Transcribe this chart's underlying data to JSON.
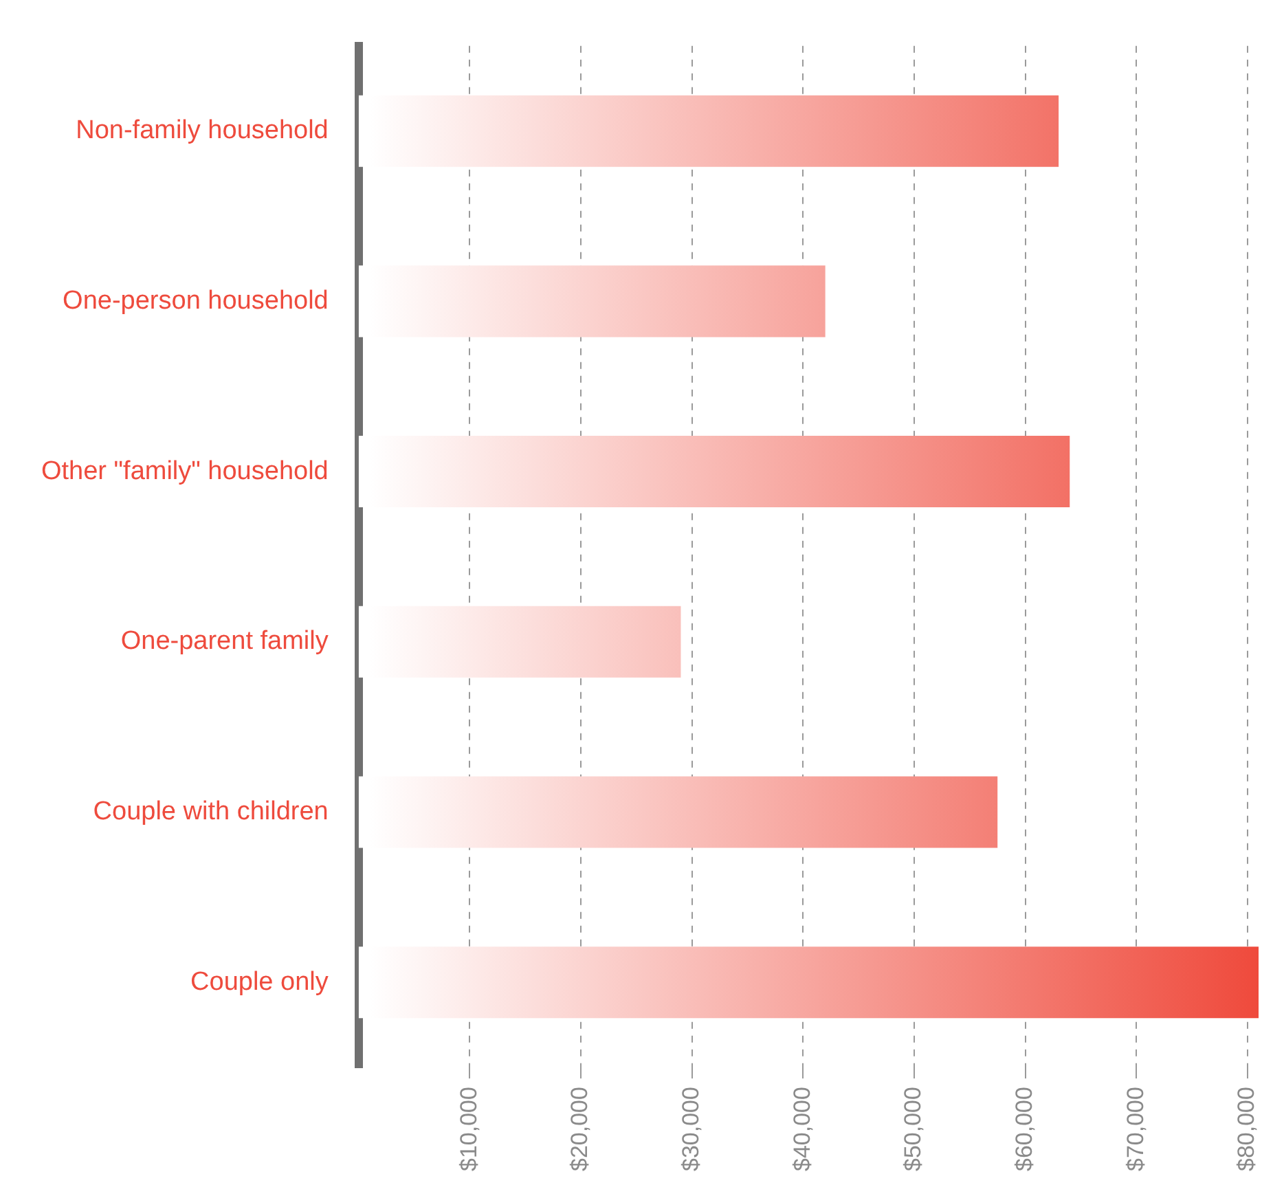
{
  "chart_data": {
    "type": "bar",
    "orientation": "horizontal",
    "categories": [
      "Non-family household",
      "One-person household",
      "Other \"family\" household",
      "One-parent family",
      "Couple with children",
      "Couple only"
    ],
    "values": [
      63000,
      42000,
      64000,
      29000,
      57500,
      81000
    ],
    "color": "#ef4a3c",
    "xlim": [
      0,
      81000
    ],
    "xticks": [
      {
        "value": 10000,
        "label": "$10,000"
      },
      {
        "value": 20000,
        "label": "$20,000"
      },
      {
        "value": 30000,
        "label": "$30,000"
      },
      {
        "value": 40000,
        "label": "$40,000"
      },
      {
        "value": 50000,
        "label": "$50,000"
      },
      {
        "value": 60000,
        "label": "$60,000"
      },
      {
        "value": 70000,
        "label": "$70,000"
      },
      {
        "value": 80000,
        "label": "$80,000"
      }
    ],
    "grid": "x",
    "legend": false
  }
}
